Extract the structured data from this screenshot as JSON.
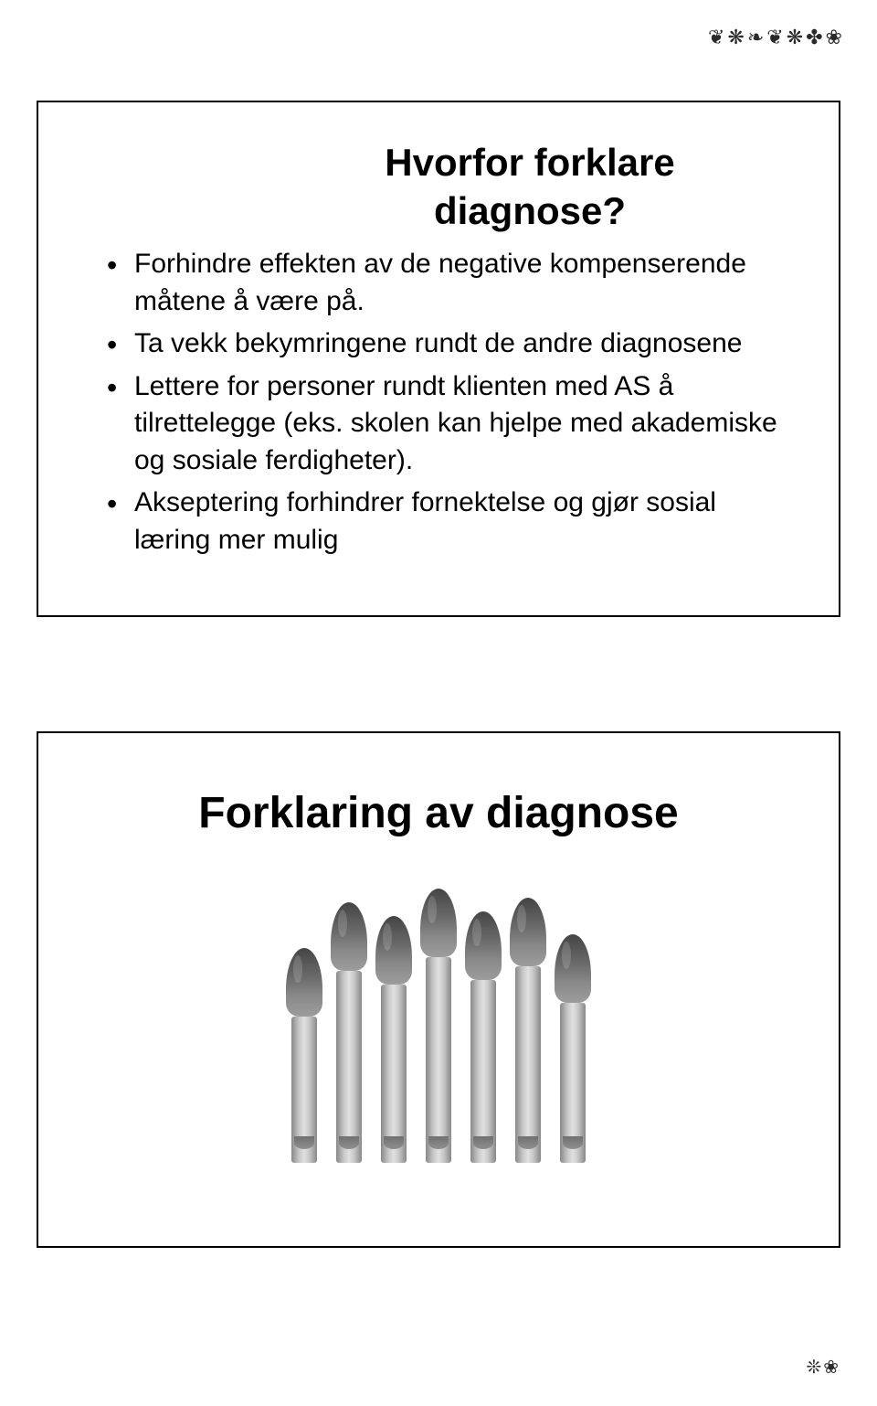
{
  "header": {
    "decoration_text": "❦❋❧❦❋✤❀"
  },
  "slide1": {
    "title_line1": "Hvorfor forklare",
    "title_line2": "diagnose?",
    "bullets": {
      "b1": "Forhindre effekten av de negative kompenserende måtene å være på.",
      "b2": "Ta vekk bekymringene rundt de andre diagnosene",
      "b3": "Lettere for personer rundt klienten med AS å tilrettelegge (eks. skolen kan hjelpe med akademiske og sosiale ferdigheter).",
      "b4": "Akseptering forhindrer fornektelse og gjør sosial læring mer mulig"
    }
  },
  "slide2": {
    "title": "Forklaring av diagnose",
    "image_semantic": "asparagus-bunch-grayscale"
  },
  "footer": {
    "page_marker": "❊❀"
  },
  "colors": {
    "page_background": "#ffffff",
    "text": "#000000",
    "border": "#000000",
    "decoration": "#2a2a2a"
  },
  "typography": {
    "title_fontsize_pt": 32,
    "body_fontsize_pt": 22,
    "font_family": "Trebuchet MS"
  }
}
